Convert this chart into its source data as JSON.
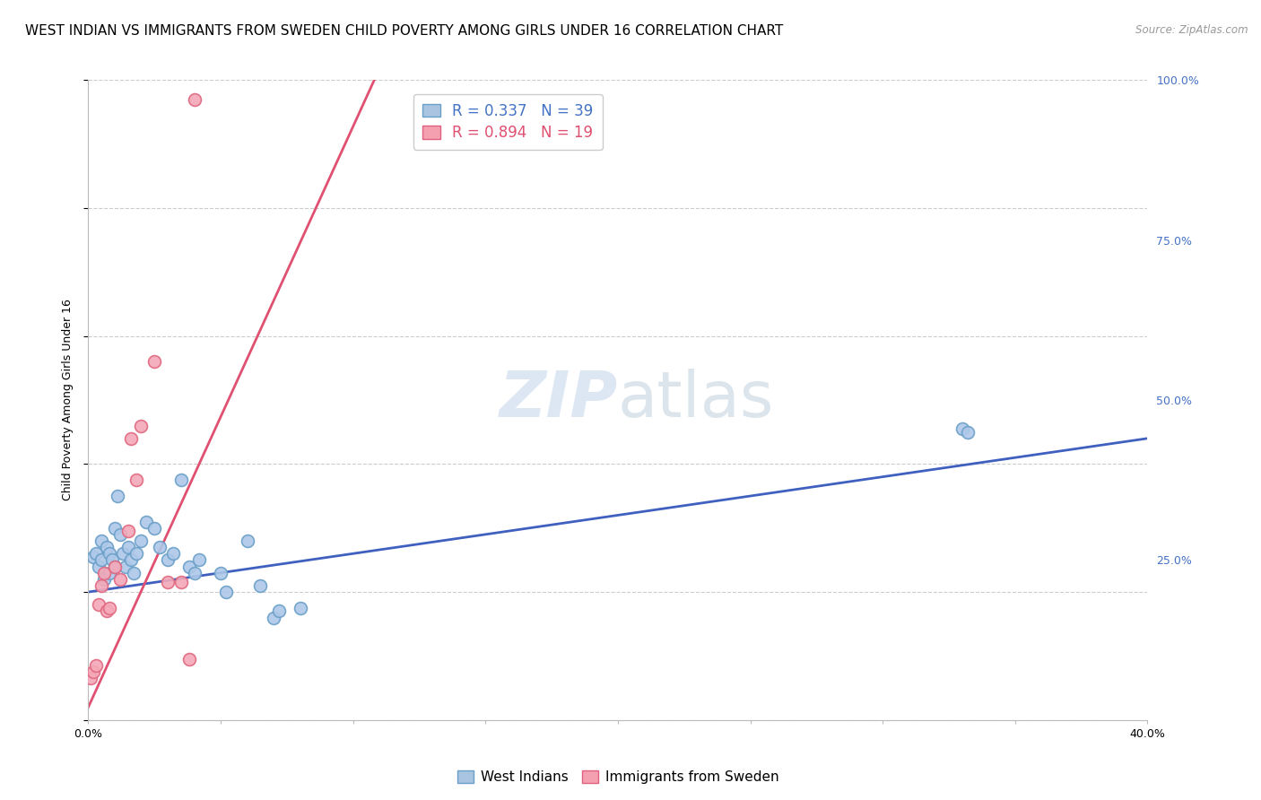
{
  "title": "WEST INDIAN VS IMMIGRANTS FROM SWEDEN CHILD POVERTY AMONG GIRLS UNDER 16 CORRELATION CHART",
  "source": "Source: ZipAtlas.com",
  "ylabel": "Child Poverty Among Girls Under 16",
  "xlim": [
    0.0,
    0.4
  ],
  "ylim": [
    0.0,
    1.0
  ],
  "xticks": [
    0.0,
    0.05,
    0.1,
    0.15,
    0.2,
    0.25,
    0.3,
    0.35,
    0.4
  ],
  "xtick_labels": [
    "0.0%",
    "",
    "",
    "",
    "",
    "",
    "",
    "",
    "40.0%"
  ],
  "yticks": [
    0.0,
    0.25,
    0.5,
    0.75,
    1.0
  ],
  "ytick_labels_right": [
    "",
    "25.0%",
    "50.0%",
    "75.0%",
    "100.0%"
  ],
  "legend_box_labels": [
    "R = 0.337   N = 39",
    "R = 0.894   N = 19"
  ],
  "legend_box_colors_face": [
    "#a8c4e0",
    "#f4a0b0"
  ],
  "legend_box_colors_edge": [
    "#6a9fc8",
    "#e06080"
  ],
  "legend_box_label_colors": [
    "#4472c4",
    "#e05070"
  ],
  "legend_bottom": [
    "West Indians",
    "Immigrants from Sweden"
  ],
  "legend_bottom_face": [
    "#a8c4e0",
    "#f4a0b0"
  ],
  "legend_bottom_edge": [
    "#6a9fc8",
    "#e06080"
  ],
  "watermark_zip": "ZIP",
  "watermark_atlas": "atlas",
  "background_color": "#ffffff",
  "grid_color": "#cccccc",
  "blue_scatter_face": "#adc8e8",
  "blue_scatter_edge": "#6a9fc8",
  "pink_scatter_face": "#f4a8b8",
  "pink_scatter_edge": "#e06880",
  "blue_line_color": "#4060c0",
  "pink_line_color": "#e05070",
  "west_indian_x": [
    0.002,
    0.003,
    0.004,
    0.005,
    0.005,
    0.006,
    0.007,
    0.008,
    0.008,
    0.009,
    0.01,
    0.01,
    0.011,
    0.012,
    0.013,
    0.014,
    0.015,
    0.016,
    0.017,
    0.018,
    0.02,
    0.022,
    0.025,
    0.027,
    0.03,
    0.032,
    0.035,
    0.038,
    0.04,
    0.042,
    0.05,
    0.052,
    0.06,
    0.065,
    0.07,
    0.072,
    0.08,
    0.33,
    0.332
  ],
  "west_indian_y": [
    0.255,
    0.26,
    0.24,
    0.28,
    0.25,
    0.22,
    0.27,
    0.26,
    0.23,
    0.25,
    0.24,
    0.3,
    0.35,
    0.29,
    0.26,
    0.24,
    0.27,
    0.25,
    0.23,
    0.26,
    0.28,
    0.31,
    0.3,
    0.27,
    0.25,
    0.26,
    0.375,
    0.24,
    0.23,
    0.25,
    0.23,
    0.2,
    0.28,
    0.21,
    0.16,
    0.17,
    0.175,
    0.455,
    0.45
  ],
  "sweden_x": [
    0.001,
    0.002,
    0.003,
    0.004,
    0.005,
    0.006,
    0.007,
    0.008,
    0.01,
    0.012,
    0.015,
    0.016,
    0.018,
    0.02,
    0.025,
    0.03,
    0.035,
    0.038,
    0.04
  ],
  "sweden_y": [
    0.065,
    0.075,
    0.085,
    0.18,
    0.21,
    0.23,
    0.17,
    0.175,
    0.24,
    0.22,
    0.295,
    0.44,
    0.375,
    0.46,
    0.56,
    0.215,
    0.215,
    0.095,
    0.97
  ],
  "blue_line_x": [
    0.0,
    0.4
  ],
  "blue_line_y": [
    0.2,
    0.44
  ],
  "pink_line_x": [
    0.0,
    0.108
  ],
  "pink_line_y": [
    0.02,
    1.0
  ],
  "title_fontsize": 11,
  "axis_label_fontsize": 9,
  "tick_fontsize": 9,
  "legend_fontsize": 11,
  "watermark_fontsize": 52,
  "marker_size": 100
}
